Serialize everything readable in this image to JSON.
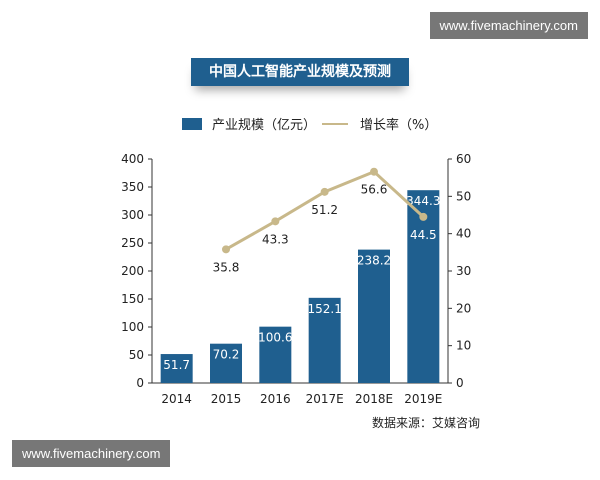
{
  "watermark": "www.fivemachinery.com",
  "chart_data": {
    "type": "bar+line",
    "title": "中国人工智能产业规模及预测",
    "categories": [
      "2014",
      "2015",
      "2016",
      "2017E",
      "2018E",
      "2019E"
    ],
    "series": [
      {
        "name": "产业规模（亿元）",
        "type": "bar",
        "axis": "left",
        "values": [
          51.7,
          70.2,
          100.6,
          152.1,
          238.2,
          344.3
        ],
        "color": "#1f5f8f"
      },
      {
        "name": "增长率（%）",
        "type": "line",
        "axis": "right",
        "values": [
          null,
          35.8,
          43.3,
          51.2,
          56.6,
          44.5
        ],
        "color": "#c8b88a"
      }
    ],
    "ylim_left": [
      0,
      400
    ],
    "yticks_left": [
      0,
      50,
      100,
      150,
      200,
      250,
      300,
      350,
      400
    ],
    "ylim_right": [
      0,
      60
    ],
    "yticks_right": [
      0,
      10,
      20,
      30,
      40,
      50,
      60
    ],
    "legend_position": "top",
    "source": "数据来源：艾媒咨询"
  }
}
